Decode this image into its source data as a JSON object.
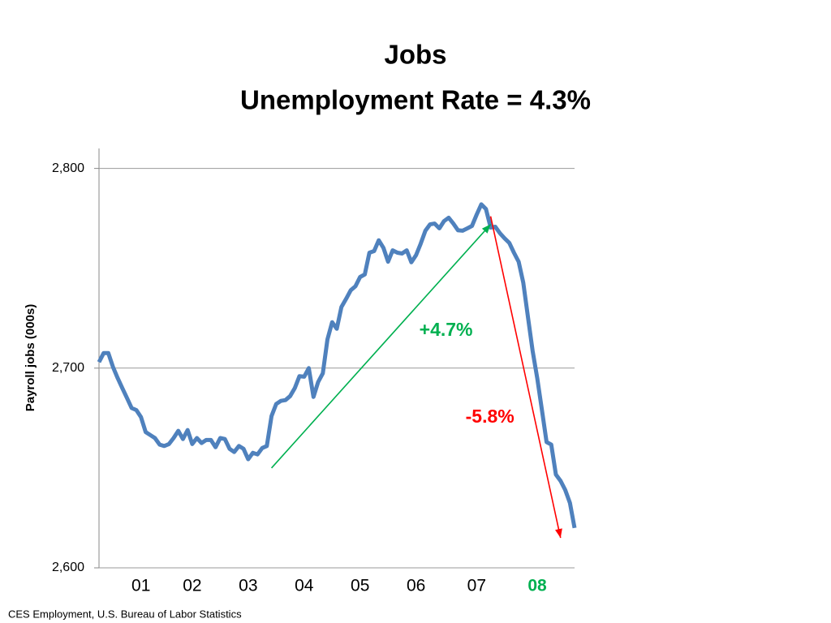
{
  "chart_data": {
    "type": "line",
    "title": "Jobs",
    "subtitle": "Unemployment Rate = 4.3%",
    "y_label": "Payroll jobs (000s)",
    "source": "CES Employment, U.S. Bureau of Labor Statistics",
    "color": "#4f81bd",
    "last_category_label_color": "#00b050",
    "grid": true,
    "ylim": [
      2600,
      2810
    ],
    "yticks": [
      {
        "value": 2600,
        "label": "2,600"
      },
      {
        "value": 2700,
        "label": "2,700"
      },
      {
        "value": 2800,
        "label": "2,800"
      }
    ],
    "categories": [
      null,
      null,
      null,
      null,
      null,
      null,
      null,
      null,
      null,
      "01",
      null,
      null,
      null,
      null,
      null,
      null,
      null,
      null,
      null,
      null,
      "02",
      null,
      null,
      null,
      null,
      null,
      null,
      null,
      null,
      null,
      null,
      null,
      "03",
      null,
      null,
      null,
      null,
      null,
      null,
      null,
      null,
      null,
      null,
      null,
      "04",
      null,
      null,
      null,
      null,
      null,
      null,
      null,
      null,
      null,
      null,
      null,
      "05",
      null,
      null,
      null,
      null,
      null,
      null,
      null,
      null,
      null,
      null,
      null,
      "06",
      null,
      null,
      null,
      null,
      null,
      null,
      null,
      null,
      null,
      null,
      null,
      null,
      "07",
      null,
      null,
      null,
      null,
      null,
      null,
      null,
      null,
      null,
      null,
      null,
      null,
      "08",
      null,
      null,
      null,
      null,
      null,
      null,
      null,
      null
    ],
    "values": [
      2703,
      2707.5,
      2707.5,
      2700.6,
      2695,
      2690,
      2685,
      2680,
      2679,
      2675.5,
      2668,
      2666.5,
      2665,
      2661.7,
      2661,
      2662,
      2665,
      2668.6,
      2664.5,
      2669,
      2662,
      2665,
      2662.5,
      2664,
      2664,
      2660.4,
      2665,
      2664.5,
      2659.6,
      2658,
      2661,
      2659.6,
      2654.4,
      2657.6,
      2656.8,
      2660,
      2661,
      2676,
      2682,
      2683.6,
      2684,
      2686,
      2690,
      2696,
      2695.7,
      2700,
      2685.6,
      2693,
      2697.4,
      2714.4,
      2723,
      2719.7,
      2730.6,
      2734.7,
      2739,
      2741,
      2745.6,
      2746.9,
      2757.8,
      2758.6,
      2764,
      2760.2,
      2753.3,
      2759,
      2757.8,
      2757.4,
      2759,
      2753,
      2756.6,
      2762.3,
      2768.8,
      2772,
      2772.4,
      2770,
      2773.6,
      2775.3,
      2772.4,
      2769,
      2768.8,
      2770,
      2771.2,
      2776.9,
      2782,
      2779.7,
      2770.4,
      2770.8,
      2767.5,
      2765,
      2762.7,
      2757.8,
      2753.3,
      2742.8,
      2725.8,
      2708.7,
      2695,
      2679,
      2663,
      2661.7,
      2646.7,
      2643.5,
      2639,
      2632.5,
      2620
    ],
    "annotations": [
      {
        "text": "+4.7%",
        "color": "#00b050",
        "from": [
          37,
          2650
        ],
        "to": [
          84,
          2772
        ]
      },
      {
        "text": "-5.8%",
        "color": "#ff0000",
        "from": [
          84,
          2776
        ],
        "to": [
          99,
          2615
        ]
      }
    ]
  }
}
